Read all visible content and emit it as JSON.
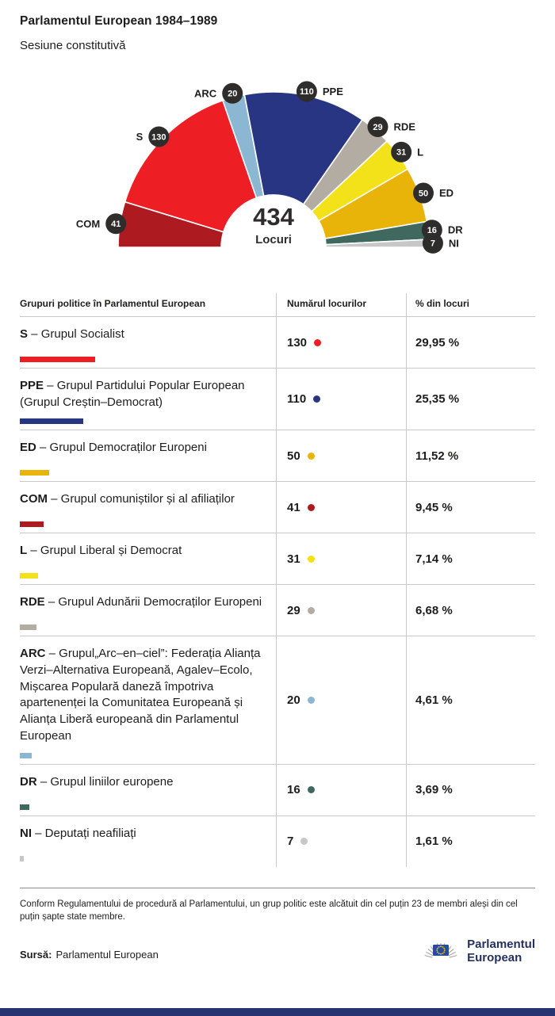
{
  "header": {
    "title": "Parlamentul European 1984–1989",
    "subtitle": "Sesiune constitutivă"
  },
  "chart_data": {
    "type": "hemicycle",
    "total": 434,
    "total_label": "Locuri",
    "badge_color": "#2e2d2c",
    "groups": [
      {
        "abbr": "COM",
        "seats": 41,
        "color": "#ad1a1f"
      },
      {
        "abbr": "S",
        "seats": 130,
        "color": "#ed1f24"
      },
      {
        "abbr": "ARC",
        "seats": 20,
        "color": "#8cb7d2"
      },
      {
        "abbr": "PPE",
        "seats": 110,
        "color": "#283583"
      },
      {
        "abbr": "RDE",
        "seats": 29,
        "color": "#b3aca3"
      },
      {
        "abbr": "L",
        "seats": 31,
        "color": "#f3e11a"
      },
      {
        "abbr": "ED",
        "seats": 50,
        "color": "#e9b409"
      },
      {
        "abbr": "DR",
        "seats": 16,
        "color": "#3f685e"
      },
      {
        "abbr": "NI",
        "seats": 7,
        "color": "#c7c7c7"
      }
    ]
  },
  "table": {
    "headers": [
      "Grupuri politice în Parlamentul European",
      "Numărul locurilor",
      "% din locuri"
    ],
    "rows": [
      {
        "abbr": "S",
        "name_rest": " – Grupul Socialist",
        "seats": 130,
        "percent": "29,95 %",
        "color": "#ed1f24"
      },
      {
        "abbr": "PPE",
        "name_rest": " – Grupul Partidului Popular European (Grupul Creștin–Democrat)",
        "seats": 110,
        "percent": "25,35 %",
        "color": "#283583"
      },
      {
        "abbr": "ED",
        "name_rest": " – Grupul Democraților Europeni",
        "seats": 50,
        "percent": "11,52 %",
        "color": "#e9b409"
      },
      {
        "abbr": "COM",
        "name_rest": " – Grupul comuniștilor și al afiliaților",
        "seats": 41,
        "percent": "9,45 %",
        "color": "#ad1a1f"
      },
      {
        "abbr": "L",
        "name_rest": " – Grupul Liberal și Democrat",
        "seats": 31,
        "percent": "7,14 %",
        "color": "#f3e11a"
      },
      {
        "abbr": "RDE",
        "name_rest": " – Grupul Adunării Democraților Europeni",
        "seats": 29,
        "percent": "6,68 %",
        "color": "#b3aca3"
      },
      {
        "abbr": "ARC",
        "name_rest": " – Grupul„Arc–en–ciel”: Federația Alianța Verzi–Alternativa Europeană, Agalev–Ecolo, Mișcarea Populară daneză împotriva apartenenței la Comunitatea Europeană și Alianța Liberă europeană din Parlamentul European",
        "seats": 20,
        "percent": "4,61 %",
        "color": "#8cb7d2"
      },
      {
        "abbr": "DR",
        "name_rest": " – Grupul liniilor europene",
        "seats": 16,
        "percent": "3,69 %",
        "color": "#3f685e"
      },
      {
        "abbr": "NI",
        "name_rest": " – Deputați neafiliați",
        "seats": 7,
        "percent": "1,61 %",
        "color": "#c7c7c7"
      }
    ]
  },
  "footer": {
    "note": "Conform Regulamentului de procedură al Parlamentului, un grup politic este alcătuit din cel puțin 23 de membri aleși din cel puțin șapte state membre.",
    "source_label": "Sursă:",
    "source_value": "Parlamentul European",
    "logo_line1": "Parlamentul",
    "logo_line2": "European"
  }
}
